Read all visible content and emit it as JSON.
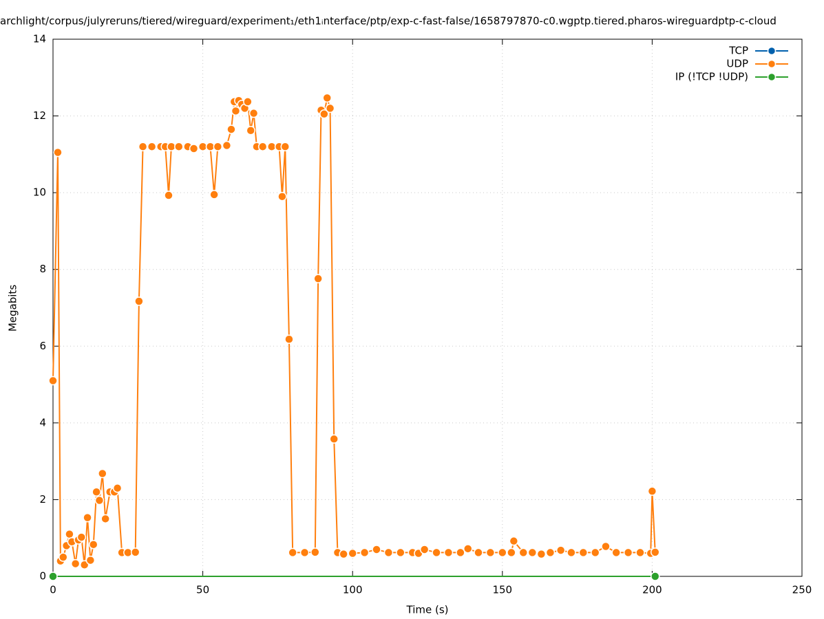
{
  "chart_data": {
    "type": "line",
    "title": "archlight/corpus/julyreruns/tiered/wireguard/experiment₁/eth1ᵢnterface/ptp/exp-c-fast-false/1658797870-c0.wgptp.tiered.pharos-wireguardptp-c-cloud",
    "x_label": "Time (s)",
    "y_label": "Megabits",
    "xlim": [
      0,
      250
    ],
    "xticks": [
      0,
      50,
      100,
      150,
      200,
      250
    ],
    "ylim": [
      0,
      14
    ],
    "yticks": [
      0,
      2,
      4,
      6,
      8,
      10,
      12,
      14
    ],
    "grid": true,
    "legend": "top-right",
    "series": [
      {
        "name": "TCP",
        "color": "#0060ad",
        "x": [],
        "values": []
      },
      {
        "name": "UDP",
        "color": "#ff7f0e",
        "x": [
          0,
          1.6,
          2.5,
          3.4,
          4.5,
          5.5,
          6.3,
          7.5,
          8.5,
          9.5,
          10.5,
          11.5,
          12.5,
          13.5,
          14.5,
          15.5,
          16.5,
          17.5,
          19,
          20.5,
          21.5,
          23,
          25,
          27.5,
          28.7,
          30,
          33,
          36,
          37.5,
          38.6,
          39.5,
          42,
          45,
          47,
          50,
          52.5,
          53.8,
          55,
          58,
          59.5,
          60.5,
          61,
          62,
          63,
          64,
          65,
          66,
          67,
          68,
          70,
          73,
          75.5,
          76.5,
          77.5,
          78.8,
          80,
          84,
          87.5,
          88.5,
          89.5,
          90.5,
          91.5,
          92.5,
          93.8,
          95,
          97,
          100,
          104,
          108,
          112,
          116,
          120,
          122,
          124,
          128,
          132,
          136,
          138.5,
          142,
          146,
          150,
          153,
          153.8,
          157,
          160,
          163,
          166,
          169.5,
          173,
          177,
          181,
          184.5,
          188,
          192,
          196,
          199.5,
          200,
          201
        ],
        "values": [
          5.1,
          11.05,
          0.4,
          0.5,
          0.8,
          1.1,
          0.9,
          0.33,
          0.95,
          1.02,
          0.3,
          1.53,
          0.42,
          0.83,
          2.2,
          1.98,
          2.68,
          1.5,
          2.2,
          2.2,
          2.3,
          0.62,
          0.62,
          0.63,
          7.17,
          11.2,
          11.2,
          11.2,
          11.2,
          9.93,
          11.2,
          11.2,
          11.2,
          11.15,
          11.2,
          11.2,
          9.95,
          11.2,
          11.23,
          11.65,
          12.37,
          12.13,
          12.4,
          12.3,
          12.2,
          12.37,
          11.62,
          12.07,
          11.2,
          11.2,
          11.2,
          11.2,
          9.9,
          11.2,
          6.18,
          0.62,
          0.62,
          0.63,
          7.76,
          12.15,
          12.05,
          12.47,
          12.2,
          3.58,
          0.62,
          0.58,
          0.6,
          0.62,
          0.7,
          0.62,
          0.62,
          0.62,
          0.6,
          0.7,
          0.62,
          0.62,
          0.62,
          0.72,
          0.62,
          0.62,
          0.62,
          0.62,
          0.92,
          0.62,
          0.62,
          0.58,
          0.62,
          0.68,
          0.62,
          0.62,
          0.62,
          0.78,
          0.62,
          0.62,
          0.62,
          0.6,
          2.22,
          0.63
        ]
      },
      {
        "name": "IP (!TCP  !UDP)",
        "color": "#2ca02c",
        "x": [
          0,
          201
        ],
        "values": [
          0,
          0
        ]
      }
    ]
  }
}
